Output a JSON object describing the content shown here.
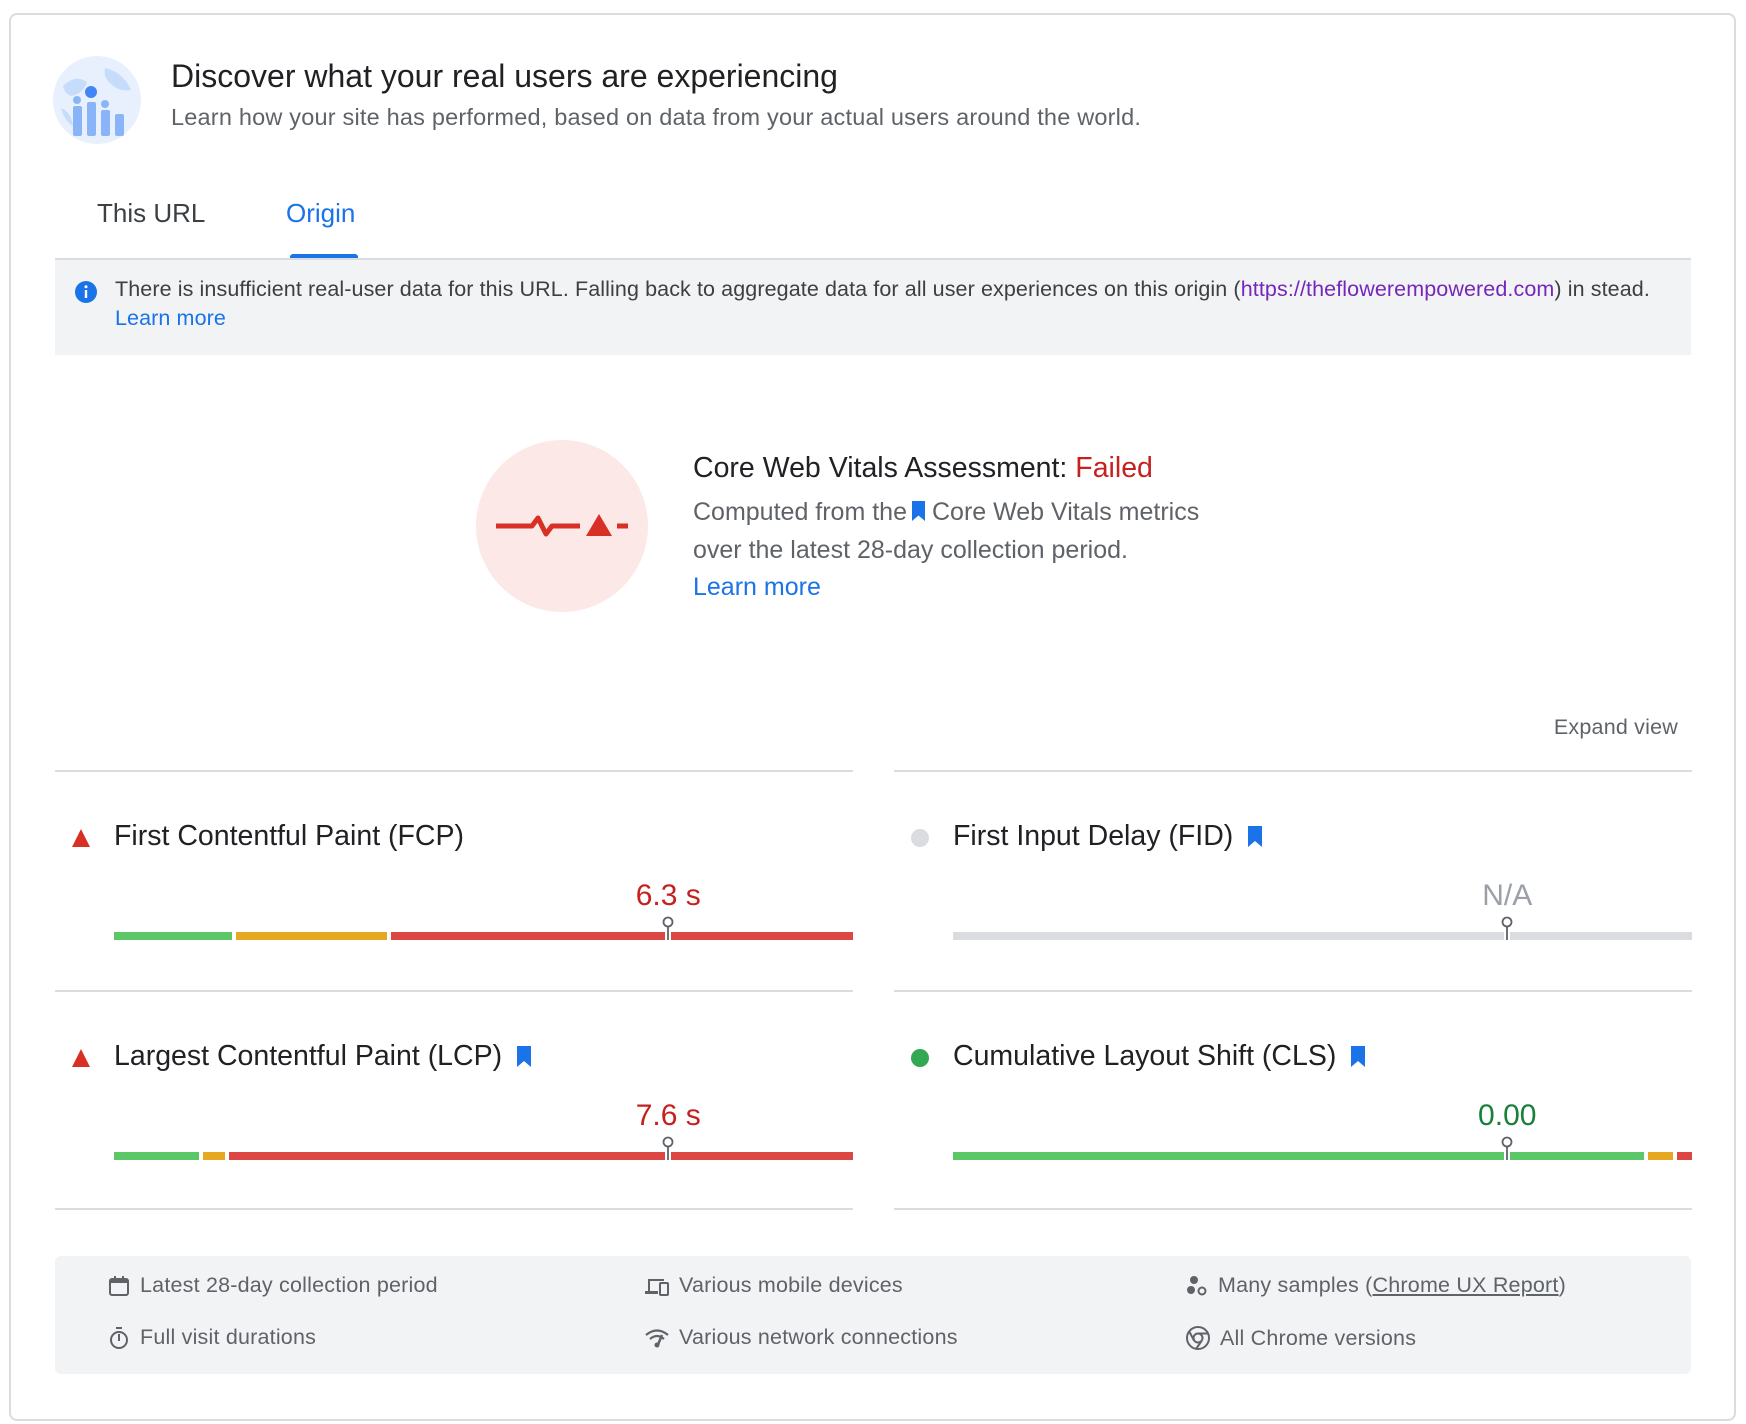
{
  "header": {
    "title": "Discover what your real users are experiencing",
    "subtitle": "Learn how your site has performed, based on data from your actual users around the world.",
    "icon": "field-data-globe-icon"
  },
  "tabs": [
    {
      "label": "This URL",
      "selected": false
    },
    {
      "label": "Origin",
      "selected": true
    }
  ],
  "notice": {
    "icon": "info-icon",
    "text_before": "There is insufficient real-user data for this URL. Falling back to aggregate data for all user experiences on this origin (",
    "origin_url": "https://theflowerempowered.com",
    "text_after": ") in stead.",
    "learn_more": "Learn more"
  },
  "assessment": {
    "icon": "failed-pulse-icon",
    "title": "Core Web Vitals Assessment:",
    "status": "Failed",
    "body_prefix": "Computed from the",
    "body_metrics": "Core Web Vitals metrics",
    "body_line2": "over the latest 28-day collection period.",
    "learn_more": "Learn more"
  },
  "expand_view": "Expand view",
  "metrics": [
    {
      "id": "fcp",
      "name": "First Contentful Paint (FCP)",
      "status": "poor",
      "core": false,
      "value": "6.3 s",
      "marker": 0.75,
      "distribution": {
        "good": 0.165,
        "needs_improvement": 0.21,
        "poor": 0.625
      }
    },
    {
      "id": "fid",
      "name": "First Input Delay (FID)",
      "status": "none",
      "core": true,
      "value": "N/A",
      "marker": 0.75,
      "distribution": null
    },
    {
      "id": "lcp",
      "name": "Largest Contentful Paint (LCP)",
      "status": "poor",
      "core": true,
      "value": "7.6 s",
      "marker": 0.75,
      "distribution": {
        "good": 0.12,
        "needs_improvement": 0.035,
        "poor": 0.845
      }
    },
    {
      "id": "cls",
      "name": "Cumulative Layout Shift (CLS)",
      "status": "good",
      "core": true,
      "value": "0.00",
      "marker": 0.75,
      "distribution": {
        "good": 0.94,
        "needs_improvement": 0.04,
        "poor": 0.02
      }
    }
  ],
  "colors": {
    "good": "#5bc766",
    "needs_improvement": "#e5a823",
    "poor": "#dc4743",
    "none": "#dadce0",
    "accent": "#1a73e8"
  },
  "footer": {
    "period": {
      "icon": "calendar-icon",
      "text": "Latest 28-day collection period"
    },
    "devices": {
      "icon": "devices-icon",
      "text": "Various mobile devices"
    },
    "samples": {
      "icon": "samples-icon",
      "text_before": "Many samples (",
      "link": "Chrome UX Report",
      "text_after": ")"
    },
    "durations": {
      "icon": "timer-icon",
      "text": "Full visit durations"
    },
    "network": {
      "icon": "network-icon",
      "text": "Various network connections"
    },
    "versions": {
      "icon": "chrome-icon",
      "text": "All Chrome versions"
    }
  }
}
